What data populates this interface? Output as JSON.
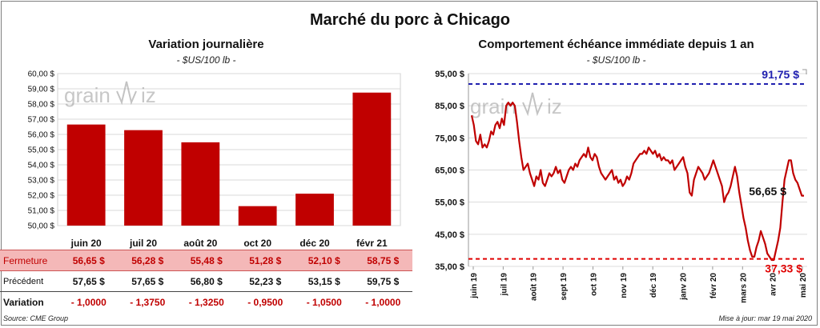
{
  "title": "Marché du porc à Chicago",
  "left": {
    "title": "Variation  journalière",
    "unit": "- $US/100 lb -"
  },
  "right": {
    "title": "Comportement  échéance immédiate depuis 1 an",
    "unit": "- $US/100 lb -"
  },
  "watermark": {
    "left": "grain",
    "right": "iz"
  },
  "colors": {
    "bar": "#c00000",
    "line": "#c00000",
    "max": "#2020b0",
    "min": "#e00000"
  },
  "table": {
    "rows": [
      {
        "label": "Fermeture",
        "values": [
          "56,65  $",
          "56,28  $",
          "55,48  $",
          "51,28  $",
          "52,10  $",
          "58,75  $"
        ]
      },
      {
        "label": "Précédent",
        "values": [
          "57,65  $",
          "57,65  $",
          "56,80  $",
          "52,23  $",
          "53,15  $",
          "59,75  $"
        ]
      },
      {
        "label": "Variation",
        "values": [
          "- 1,0000",
          "- 1,3750",
          "- 1,3250",
          "- 0,9500",
          "- 1,0500",
          "- 1,0000"
        ]
      }
    ]
  },
  "source": "Source: CME Group",
  "update": "Mise à jour: mar 19 mai 2020",
  "chart_data": [
    {
      "type": "bar",
      "title": "Variation  journalière",
      "subtitle": "- $US/100 lb -",
      "categories": [
        "juin 20",
        "juil 20",
        "août 20",
        "oct 20",
        "déc 20",
        "févr 21"
      ],
      "values": [
        56.65,
        56.28,
        55.48,
        51.28,
        52.1,
        58.75
      ],
      "ylim": [
        50,
        60
      ],
      "yticks": [
        "50,00 $",
        "51,00 $",
        "52,00 $",
        "53,00 $",
        "54,00 $",
        "55,00 $",
        "56,00 $",
        "57,00 $",
        "58,00 $",
        "59,00 $",
        "60,00 $"
      ],
      "grid": true
    },
    {
      "type": "line",
      "title": "Comportement  échéance immédiate depuis 1 an",
      "subtitle": "- $US/100 lb -",
      "ylim": [
        35,
        95
      ],
      "yticks": [
        "35,00 $",
        "45,00 $",
        "55,00 $",
        "65,00 $",
        "75,00 $",
        "85,00 $",
        "95,00 $"
      ],
      "xticks": [
        "juin 19",
        "juil 19",
        "août 19",
        "sept 19",
        "oct 19",
        "nov 19",
        "déc 19",
        "janv 20",
        "févr 20",
        "mars 20",
        "avr 20",
        "mai 20"
      ],
      "max": {
        "value": 91.75,
        "label": "91,75 $"
      },
      "min": {
        "value": 37.33,
        "label": "37,33 $"
      },
      "last": {
        "value": 56.65,
        "label": "56,65 $"
      },
      "values": [
        82,
        79,
        74,
        73,
        76,
        72,
        73,
        72,
        74,
        77,
        76,
        79,
        80,
        78,
        81,
        79,
        85,
        86,
        85,
        86,
        85,
        80,
        74,
        69,
        65,
        66,
        67,
        64,
        62,
        60,
        63,
        62,
        65,
        61,
        60,
        62,
        64,
        63,
        64,
        66,
        64,
        65,
        62,
        61,
        63,
        65,
        66,
        65,
        67,
        66,
        68,
        69,
        70,
        69,
        72,
        69,
        68,
        70,
        69,
        66,
        64,
        63,
        62,
        63,
        64,
        65,
        62,
        63,
        61,
        62,
        60,
        61,
        63,
        62,
        64,
        67,
        68,
        69,
        70,
        70,
        71,
        70,
        72,
        71,
        70,
        71,
        69,
        70,
        68,
        69,
        68,
        68,
        67,
        68,
        65,
        66,
        67,
        68,
        69,
        66,
        64,
        58,
        57,
        62,
        64,
        66,
        65,
        64,
        62,
        63,
        64,
        66,
        68,
        66,
        64,
        62,
        60,
        55,
        57,
        58,
        60,
        63,
        66,
        63,
        58,
        54,
        50,
        47,
        43,
        40,
        38,
        38,
        41,
        43,
        46,
        44,
        42,
        39,
        38,
        37,
        37,
        40,
        43,
        47,
        55,
        62,
        65,
        68,
        68,
        64,
        62,
        61,
        59,
        57,
        57
      ]
    }
  ]
}
